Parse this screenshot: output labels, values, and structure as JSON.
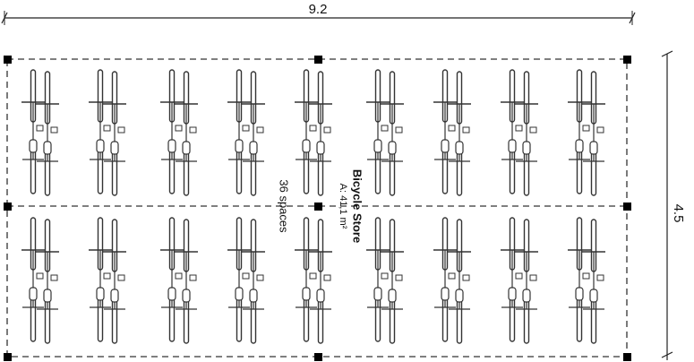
{
  "width_label": "9.2",
  "depth_label": "4.5",
  "room": {
    "name": "Bicycle Store",
    "area": "A: 41,1 m²",
    "capacity": "36 spaces"
  }
}
